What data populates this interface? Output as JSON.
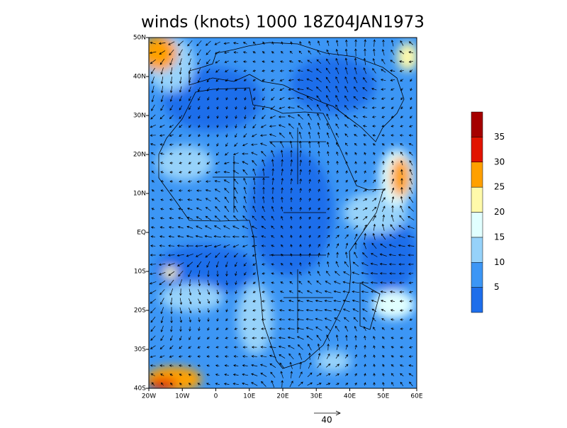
{
  "title": "winds (knots) 1000 18Z04JAN1973",
  "map": {
    "x_labels": [
      "20W",
      "10W",
      "0",
      "10E",
      "20E",
      "30E",
      "40E",
      "50E",
      "60E"
    ],
    "y_labels": [
      "50N",
      "40N",
      "30N",
      "20N",
      "10N",
      "EQ",
      "10S",
      "20S",
      "30S",
      "40S"
    ]
  },
  "colorbar": {
    "levels": [
      5,
      10,
      15,
      20,
      25,
      30,
      35
    ],
    "colors": [
      "#1e6eeb",
      "#3c96f5",
      "#96d2fa",
      "#e1ffff",
      "#fffaaa",
      "#ffa000",
      "#e11400",
      "#a50000"
    ]
  },
  "vector_reference": {
    "label": "40"
  }
}
